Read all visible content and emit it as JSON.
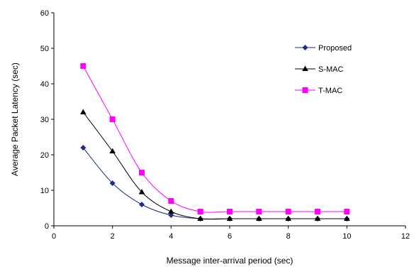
{
  "chart_data": {
    "type": "line",
    "title": "",
    "xlabel": "Message inter-arrival period (sec)",
    "ylabel": "Average Packet Latency (sec)",
    "xlim": [
      0,
      12
    ],
    "ylim": [
      0,
      60
    ],
    "xticks": [
      0,
      2,
      4,
      6,
      8,
      10,
      12
    ],
    "yticks": [
      0,
      10,
      20,
      30,
      40,
      50,
      60
    ],
    "grid": false,
    "legend_position": "top-right",
    "x": [
      1,
      2,
      3,
      4,
      5,
      6,
      7,
      8,
      9,
      10
    ],
    "series": [
      {
        "name": "Proposed",
        "color": "#1f2a8c",
        "marker": "diamond",
        "values": [
          22,
          12,
          6,
          3,
          2,
          2,
          2,
          2,
          2,
          2
        ]
      },
      {
        "name": "S-MAC",
        "color": "#000000",
        "marker": "triangle",
        "values": [
          32,
          21,
          9.5,
          4,
          2,
          2,
          2,
          2,
          2,
          2
        ]
      },
      {
        "name": "T-MAC",
        "color": "#ff00ff",
        "marker": "square",
        "values": [
          45,
          30,
          15,
          7,
          4,
          4,
          4,
          4,
          4,
          4
        ]
      }
    ]
  }
}
